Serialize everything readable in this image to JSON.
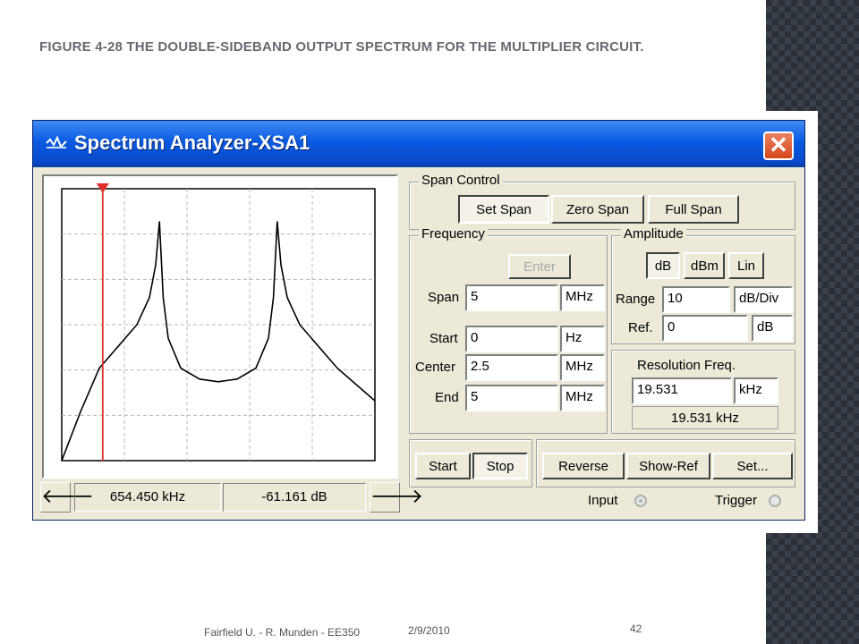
{
  "slide": {
    "title": "Figure 4-28   The double-sideband output spectrum for the multiplier circuit.",
    "footer_left": "Fairfield U. -  R. Munden - EE350",
    "footer_date": "2/9/2010",
    "page_number": "42"
  },
  "window": {
    "title": "Spectrum Analyzer-XSA1",
    "close_label": "✕"
  },
  "graph": {
    "cursor_readout_freq": "654.450 kHz",
    "cursor_readout_level": "-61.161  dB",
    "left_arrow": "🡐",
    "right_arrow": "🡒"
  },
  "chart_data": {
    "type": "line",
    "note_units": "x in kHz, y relative amplitude",
    "x": [
      0,
      300,
      600,
      900,
      1200,
      1400,
      1500,
      1560,
      1620,
      1700,
      1900,
      2200,
      2500,
      2800,
      3100,
      3300,
      3380,
      3440,
      3500,
      3600,
      3800,
      4100,
      4400,
      4700,
      5000
    ],
    "y": [
      -100,
      -82,
      -66,
      -58,
      -50,
      -40,
      -28,
      -12,
      -40,
      -55,
      -66,
      -70,
      -71,
      -70,
      -66,
      -55,
      -40,
      -12,
      -28,
      -40,
      -50,
      -58,
      -66,
      -72,
      -78
    ],
    "xlim": [
      0,
      5000
    ],
    "ylim": [
      -100,
      0
    ],
    "grid": true,
    "cursor_x": 654.45
  },
  "span_control": {
    "label": "Span Control",
    "set_span": "Set Span",
    "zero_span": "Zero Span",
    "full_span": "Full Span"
  },
  "frequency": {
    "label": "Frequency",
    "enter": "Enter",
    "span_label": "Span",
    "span_value": "5",
    "span_unit": "MHz",
    "start_label": "Start",
    "start_value": "0",
    "start_unit": "Hz",
    "center_label": "Center",
    "center_value": "2.5",
    "center_unit": "MHz",
    "end_label": "End",
    "end_value": "5",
    "end_unit": "MHz"
  },
  "amplitude": {
    "label": "Amplitude",
    "db": "dB",
    "dbm": "dBm",
    "lin": "Lin",
    "range_label": "Range",
    "range_value": "10",
    "range_unit": "dB/Div",
    "ref_label": "Ref.",
    "ref_value": "0",
    "ref_unit": "dB"
  },
  "resolution": {
    "label": "Resolution Freq.",
    "value": "19.531",
    "unit": "kHz",
    "display": "19.531 kHz"
  },
  "bottom": {
    "start": "Start",
    "stop": "Stop",
    "reverse": "Reverse",
    "show_ref": "Show-Ref",
    "set": "Set...",
    "input_label": "Input",
    "trigger_label": "Trigger"
  }
}
